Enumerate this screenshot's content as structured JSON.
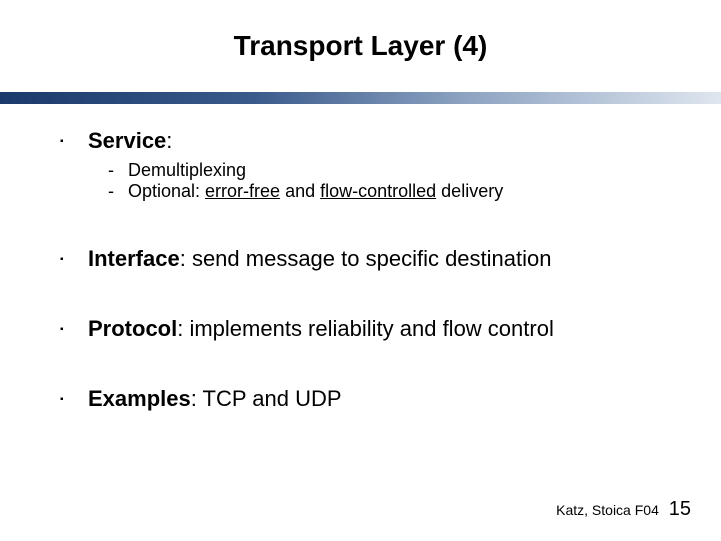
{
  "title": {
    "text": "Transport Layer (4)",
    "fontsize": 28,
    "color": "#000000"
  },
  "separator_gradient": [
    "#1b3a6b",
    "#3a5a8c",
    "#8ea4c2",
    "#dfe6ef"
  ],
  "bullets": {
    "marker": "▪",
    "sub_marker": "-",
    "items": [
      {
        "label": "Service",
        "rest": ":",
        "sub": [
          {
            "text": "Demultiplexing"
          },
          {
            "prefix": "Optional: ",
            "u1": "error-free",
            "mid": " and ",
            "u2": "flow-controlled",
            "suffix": " delivery"
          }
        ]
      },
      {
        "label": "Interface",
        "rest": ": send message to specific destination"
      },
      {
        "label": "Protocol",
        "rest": ": implements reliability and flow control"
      },
      {
        "label": "Examples",
        "rest": ": TCP and UDP"
      }
    ]
  },
  "footer": {
    "credit": "Katz, Stoica F04",
    "page": "15"
  }
}
